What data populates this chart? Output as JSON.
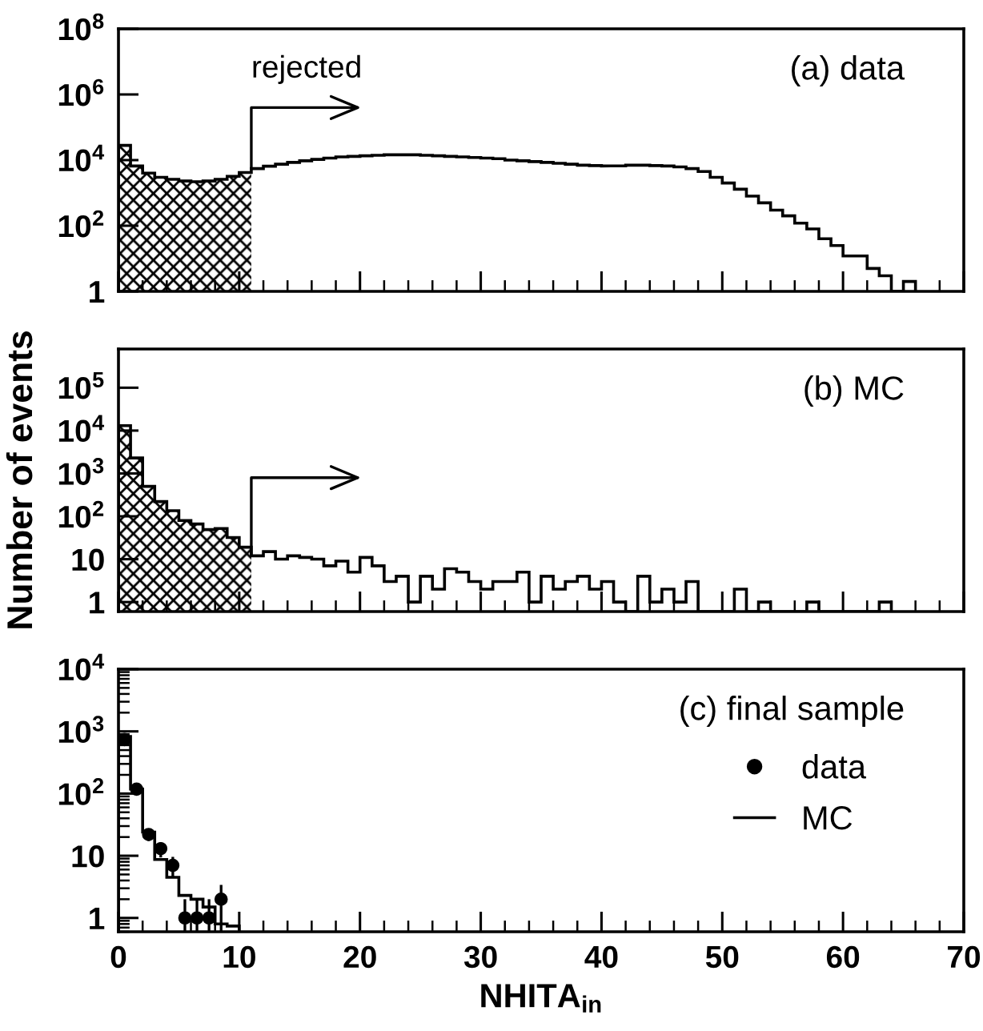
{
  "chart_data": [
    {
      "type": "histogram",
      "title": "(a) data",
      "annotations": [
        {
          "text": "rejected",
          "x": 11
        }
      ],
      "bins": [
        0,
        1,
        2,
        3,
        4,
        5,
        6,
        7,
        8,
        9,
        10,
        11,
        12,
        13,
        14,
        15,
        16,
        17,
        18,
        19,
        20,
        21,
        22,
        23,
        24,
        25,
        26,
        27,
        28,
        29,
        30,
        31,
        32,
        33,
        34,
        35,
        36,
        37,
        38,
        39,
        40,
        41,
        42,
        43,
        44,
        45,
        46,
        47,
        48,
        49,
        50,
        51,
        52,
        53,
        54,
        55,
        56,
        57,
        58,
        59,
        60,
        61,
        62,
        63,
        64,
        65,
        66
      ],
      "values": [
        28000,
        6600,
        4000,
        3000,
        2600,
        2300,
        2200,
        2300,
        2600,
        3200,
        4200,
        5500,
        6500,
        7500,
        8500,
        9500,
        10500,
        11500,
        12500,
        13000,
        13500,
        14000,
        14500,
        14500,
        14500,
        14000,
        13500,
        13000,
        12500,
        12000,
        11500,
        11000,
        10000,
        9500,
        9000,
        8500,
        8000,
        7500,
        7000,
        6800,
        6600,
        6700,
        7000,
        7000,
        6800,
        6600,
        6200,
        5500,
        4500,
        3000,
        2000,
        1300,
        800,
        500,
        300,
        200,
        120,
        80,
        40,
        25,
        12,
        12,
        5,
        3,
        null,
        2
      ],
      "color": "#000000",
      "bands": [
        {
          "axis": "x",
          "from": 0,
          "to": 11,
          "label": null
        }
      ],
      "log": true,
      "xlim": [
        0,
        70
      ],
      "xticks": [
        0,
        10,
        20,
        30,
        40,
        50,
        60,
        70
      ],
      "ylim": [
        1,
        100000000
      ],
      "yticks": [
        1,
        {
          "value": 100,
          "label": "10$^{2}$"
        },
        {
          "value": 10000,
          "label": "10$^{4}$"
        },
        {
          "value": 1000000,
          "label": "10$^{6}$"
        },
        {
          "value": 100000000,
          "label": "10$^{8}$"
        }
      ],
      "tick_labels": "y",
      "grid": false,
      "legend": false
    },
    {
      "type": "histogram",
      "title": "(b) MC",
      "ylabel": "Number of events",
      "bins": [
        0,
        1,
        2,
        3,
        4,
        5,
        6,
        7,
        8,
        9,
        10,
        11,
        12,
        13,
        14,
        15,
        16,
        17,
        18,
        19,
        20,
        21,
        22,
        23,
        24,
        25,
        26,
        27,
        28,
        29,
        30,
        31,
        32,
        33,
        34,
        35,
        36,
        37,
        38,
        39,
        40,
        41,
        42,
        43,
        44,
        45,
        46,
        47,
        48,
        49,
        50,
        51,
        52,
        53,
        54,
        55,
        56,
        57,
        58,
        59,
        60,
        61,
        62,
        63,
        64
      ],
      "values": [
        13000,
        2300,
        500,
        220,
        135,
        80,
        66,
        49,
        52,
        32,
        19,
        12,
        15,
        10,
        12,
        11,
        10,
        7,
        9,
        5,
        11,
        7,
        3,
        4,
        1,
        4,
        2,
        6,
        5,
        3,
        2,
        3,
        3,
        5,
        1,
        4,
        2,
        3,
        4,
        2,
        3,
        1,
        null,
        4,
        1,
        2,
        1,
        3,
        null,
        null,
        null,
        2,
        null,
        1,
        null,
        null,
        null,
        1,
        null,
        null,
        null,
        null,
        null,
        1
      ],
      "color": "#000000",
      "bands": [
        {
          "axis": "x",
          "from": 0,
          "to": 11,
          "label": null
        }
      ],
      "log": true,
      "xlim": [
        0,
        70
      ],
      "xticks": [
        0,
        10,
        20,
        30,
        40,
        50,
        60,
        70
      ],
      "ylim": [
        0.6,
        800000
      ],
      "yticks": [
        1,
        10,
        {
          "value": 100,
          "label": "10$^{2}$"
        },
        {
          "value": 1000,
          "label": "10$^{3}$"
        },
        {
          "value": 10000,
          "label": "10$^{4}$"
        },
        {
          "value": 100000,
          "label": "10$^{5}$"
        }
      ],
      "tick_labels": "y",
      "grid": false,
      "legend": false
    },
    {
      "type": "histogram",
      "title": "(c) final sample",
      "xlabel": "NHITA$_{in}$",
      "bins": [
        0,
        1,
        2,
        3,
        4,
        5,
        6,
        7,
        8,
        9,
        10
      ],
      "series": [
        {
          "name": "data",
          "type": "scatter",
          "color": "#000000",
          "x": [
            0.5,
            1.5,
            2.5,
            3.5,
            4.5,
            5.5,
            6.5,
            7.5,
            8.5
          ],
          "values": [
            740,
            118,
            22,
            13,
            7,
            1,
            1,
            1,
            2
          ],
          "errors": [
            27,
            11,
            4.7,
            3.6,
            2.6,
            [
              0.6,
              2
            ],
            [
              0.6,
              2
            ],
            [
              0.6,
              2
            ],
            1.4
          ]
        },
        {
          "name": "MC",
          "type": "histogram",
          "color": "#000000",
          "values": [
            830,
            118,
            24,
            8.7,
            4.5,
            2.3,
            2.0,
            1.5,
            0.8,
            0.74
          ]
        }
      ],
      "marker": "circle",
      "log": true,
      "xlim": [
        0,
        70
      ],
      "xticks": [
        0,
        10,
        20,
        30,
        40,
        50,
        60,
        70
      ],
      "ylim": [
        0.6,
        10000
      ],
      "yticks": [
        1,
        10,
        {
          "value": 100,
          "label": "10$^{2}$"
        },
        {
          "value": 1000,
          "label": "10$^{3}$"
        },
        {
          "value": 10000,
          "label": "10$^{4}$"
        }
      ],
      "grid": false,
      "legend": "right"
    }
  ]
}
